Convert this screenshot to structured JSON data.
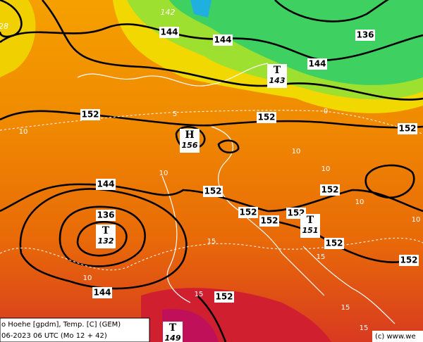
{
  "map": {
    "caption": [
      "o Hoehe [gpdm], Temp. [C] (GEM)",
      "06-2023 06 UTC (Mo 12 + 42)"
    ],
    "copyright": "(c) www.we",
    "height_labels": [
      144,
      144,
      136,
      144,
      152,
      152,
      152,
      144,
      152,
      152,
      152,
      152,
      152,
      136,
      144,
      152,
      152,
      152
    ],
    "small_labels": [
      "142",
      "28"
    ],
    "pressure_centers": [
      {
        "symbol": "T",
        "value": 143
      },
      {
        "symbol": "H",
        "value": 156
      },
      {
        "symbol": "T",
        "value": 132
      },
      {
        "symbol": "T",
        "value": 151
      },
      {
        "symbol": "T",
        "value": 149
      }
    ],
    "temp_labels": [
      5,
      0,
      10,
      10,
      10,
      10,
      10,
      10,
      10,
      15,
      15,
      15,
      15,
      15
    ]
  }
}
